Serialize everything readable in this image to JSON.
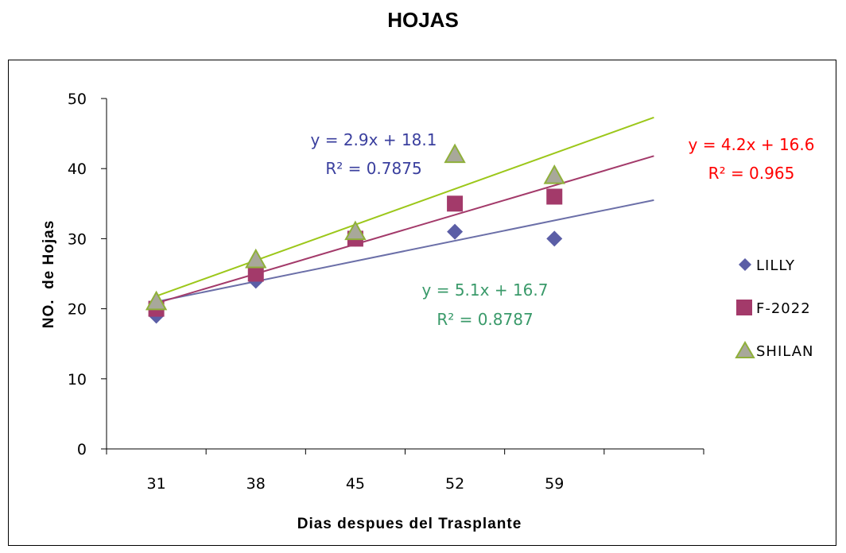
{
  "chart_data": {
    "type": "scatter",
    "title": "HOJAS",
    "xlabel": "Dias despues del Trasplante",
    "ylabel": "NO.  de Hojas",
    "categories": [
      "31",
      "38",
      "45",
      "52",
      "59"
    ],
    "ylim": [
      0,
      50
    ],
    "yticks": [
      "0",
      "10",
      "20",
      "30",
      "40",
      "50"
    ],
    "grid": false,
    "legend_position": "right",
    "series": [
      {
        "name": "LILLY",
        "marker": "diamond",
        "color": "#5B5EA6",
        "trend_color": "#6B6FA8",
        "values": [
          19,
          24,
          30,
          31,
          30
        ]
      },
      {
        "name": "F-2022",
        "marker": "square",
        "color": "#A33A6A",
        "trend_color": "#A33A6A",
        "values": [
          20,
          25,
          30,
          35,
          36
        ]
      },
      {
        "name": "SHILAN",
        "marker": "triangle",
        "color": "#8FB03A",
        "trend_color": "#9CC71A",
        "values": [
          21,
          27,
          31,
          42,
          39
        ]
      }
    ],
    "trendlines": [
      {
        "series": "LILLY",
        "slope": 2.9,
        "intercept": 18.1
      },
      {
        "series": "F-2022",
        "slope": 4.2,
        "intercept": 16.6
      },
      {
        "series": "SHILAN",
        "slope": 5.1,
        "intercept": 16.7
      }
    ],
    "annotations": [
      {
        "equation": "y = 2.9x + 18.1",
        "r2": "R² = 0.7875",
        "color": "#3A3F9E"
      },
      {
        "equation": "y = 4.2x + 16.6",
        "r2": "R² = 0.965",
        "color": "#FF0000"
      },
      {
        "equation": "y = 5.1x + 16.7",
        "r2": "R² = 0.8787",
        "color": "#3A9A6A"
      }
    ]
  }
}
